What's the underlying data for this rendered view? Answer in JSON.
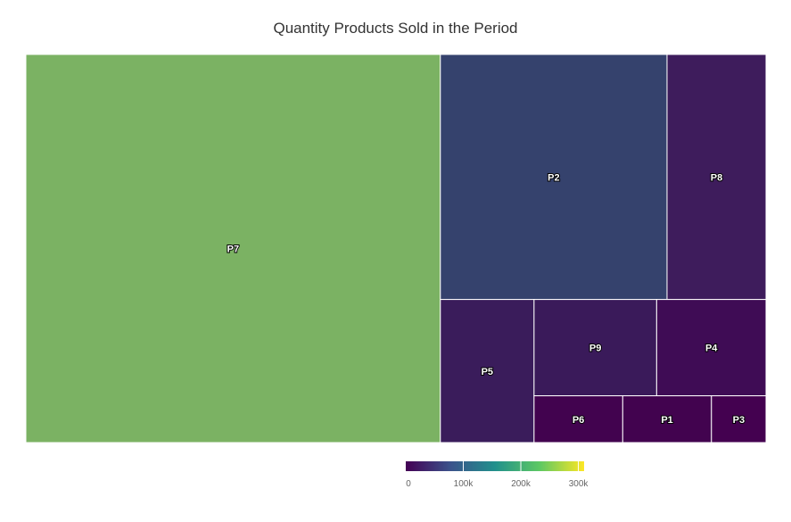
{
  "chart_data": {
    "type": "treemap",
    "title": "Quantity Products Sold in the Period",
    "items": [
      {
        "label": "P7",
        "value": 252000,
        "color": "#7BB263"
      },
      {
        "label": "P2",
        "value": 87000,
        "color": "#35426D"
      },
      {
        "label": "P8",
        "value": 38000,
        "color": "#3E1C5C"
      },
      {
        "label": "P5",
        "value": 21000,
        "color": "#3A1C5B"
      },
      {
        "label": "P9",
        "value": 18500,
        "color": "#3A1A5A"
      },
      {
        "label": "P4",
        "value": 16500,
        "color": "#3F0C55"
      },
      {
        "label": "P6",
        "value": 6500,
        "color": "#42034F"
      },
      {
        "label": "P1",
        "value": 6500,
        "color": "#42034F"
      },
      {
        "label": "P3",
        "value": 4000,
        "color": "#440150"
      }
    ],
    "colorbar": {
      "range": [
        0,
        310000
      ],
      "ticks": [
        {
          "value": 0,
          "label": "0"
        },
        {
          "value": 100000,
          "label": "100k"
        },
        {
          "value": 200000,
          "label": "200k"
        },
        {
          "value": 300000,
          "label": "300k"
        }
      ],
      "colors": [
        "#440154",
        "#3B528B",
        "#21908C",
        "#5DC863",
        "#FDE725"
      ]
    }
  }
}
